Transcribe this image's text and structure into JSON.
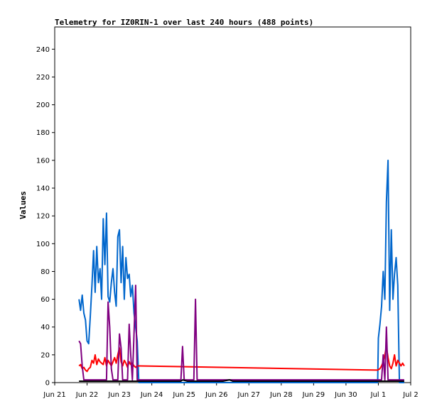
{
  "chart_data": {
    "type": "line",
    "title": "Telemetry for IZ0RIN-1 over last 240 hours (488 points)",
    "xlabel": "",
    "ylabel": "Values",
    "x_ticks": [
      "Jun 21",
      "Jun 22",
      "Jun 23",
      "Jun 24",
      "Jun 25",
      "Jun 26",
      "Jun 27",
      "Jun 28",
      "Jun 29",
      "Jun 30",
      "Jul 1",
      "Jul 2"
    ],
    "y_ticks": [
      0,
      20,
      40,
      60,
      80,
      100,
      120,
      140,
      160,
      180,
      200,
      220,
      240
    ],
    "xlim": [
      0,
      11
    ],
    "ylim": [
      0,
      256
    ],
    "grid": false,
    "legend": "none",
    "series": [
      {
        "color": "#0066cc",
        "x": [
          0.75,
          0.8,
          0.85,
          0.9,
          0.95,
          1.0,
          1.05,
          1.1,
          1.15,
          1.2,
          1.25,
          1.3,
          1.35,
          1.4,
          1.45,
          1.5,
          1.55,
          1.6,
          1.65,
          1.7,
          1.75,
          1.8,
          1.85,
          1.9,
          1.95,
          2.0,
          2.05,
          2.1,
          2.15,
          2.2,
          2.25,
          2.3,
          2.35,
          2.4,
          2.45,
          2.5,
          2.55,
          2.6,
          2.65,
          2.7,
          2.75,
          2.8,
          2.85,
          2.9,
          2.95,
          3.0,
          3.02,
          9.98,
          10.0,
          10.05,
          10.1,
          10.15,
          10.2,
          10.25,
          10.3,
          10.35,
          10.4,
          10.45,
          10.5,
          10.55,
          10.6,
          10.65,
          10.7,
          10.75,
          10.8
        ],
        "y": [
          60,
          52,
          63,
          50,
          45,
          30,
          28,
          48,
          70,
          95,
          65,
          98,
          72,
          82,
          60,
          118,
          85,
          122,
          62,
          58,
          72,
          82,
          65,
          55,
          105,
          110,
          72,
          98,
          60,
          90,
          75,
          78,
          62,
          70,
          50,
          40,
          30,
          0,
          0,
          0,
          0,
          0,
          0,
          0,
          0,
          0,
          0,
          0,
          32,
          42,
          55,
          80,
          60,
          130,
          160,
          52,
          110,
          60,
          78,
          90,
          70,
          0,
          0,
          0,
          0
        ]
      },
      {
        "color": "#ff0000",
        "x": [
          0.75,
          0.8,
          0.85,
          0.9,
          0.95,
          1.0,
          1.05,
          1.1,
          1.15,
          1.2,
          1.25,
          1.3,
          1.35,
          1.4,
          1.45,
          1.5,
          1.55,
          1.6,
          1.65,
          1.7,
          1.75,
          1.8,
          1.85,
          1.9,
          1.95,
          2.0,
          2.05,
          2.1,
          2.15,
          2.2,
          2.25,
          2.3,
          2.35,
          2.4,
          2.45,
          2.5,
          2.55,
          2.6,
          9.98,
          10.05,
          10.1,
          10.15,
          10.2,
          10.25,
          10.3,
          10.35,
          10.4,
          10.45,
          10.5,
          10.55,
          10.6,
          10.65,
          10.7,
          10.75,
          10.8
        ],
        "y": [
          12,
          13,
          10,
          11,
          9,
          8,
          10,
          11,
          16,
          14,
          20,
          13,
          17,
          15,
          14,
          13,
          18,
          12,
          16,
          14,
          12,
          15,
          18,
          14,
          20,
          25,
          15,
          12,
          16,
          14,
          11,
          15,
          13,
          14,
          12,
          11,
          12,
          12,
          9,
          10,
          12,
          15,
          20,
          26,
          18,
          12,
          10,
          14,
          20,
          12,
          16,
          14,
          12,
          14,
          12
        ]
      },
      {
        "color": "#800080",
        "x": [
          0.75,
          0.8,
          0.85,
          0.9,
          0.95,
          1.0,
          1.05,
          1.1,
          1.15,
          1.2,
          1.25,
          1.3,
          1.35,
          1.4,
          1.45,
          1.5,
          1.55,
          1.6,
          1.65,
          1.7,
          1.75,
          1.8,
          1.85,
          1.9,
          1.95,
          2.0,
          2.05,
          2.1,
          2.15,
          2.2,
          2.25,
          2.3,
          2.35,
          2.4,
          2.45,
          2.5,
          2.55,
          2.6,
          2.65,
          3.9,
          3.95,
          4.0,
          4.3,
          4.35,
          4.4,
          9.98,
          10.05,
          10.1,
          10.15,
          10.2,
          10.25,
          10.3,
          10.35,
          10.4,
          10.45,
          10.5,
          10.55,
          10.6,
          10.65,
          10.7,
          10.75,
          10.8
        ],
        "y": [
          30,
          28,
          12,
          2,
          2,
          2,
          2,
          2,
          2,
          2,
          2,
          2,
          2,
          2,
          2,
          2,
          2,
          2,
          58,
          40,
          10,
          2,
          2,
          2,
          2,
          35,
          25,
          2,
          2,
          2,
          2,
          42,
          20,
          2,
          35,
          70,
          2,
          2,
          2,
          2,
          26,
          2,
          2,
          60,
          2,
          2,
          2,
          2,
          20,
          2,
          40,
          2,
          2,
          2,
          2,
          2,
          2,
          2,
          2,
          2,
          2,
          2
        ]
      },
      {
        "color": "#000000",
        "x": [
          0.75,
          3.9,
          3.95,
          4.1,
          4.5,
          5.2,
          5.4,
          5.5,
          6.0,
          8.0,
          9.98,
          10.8
        ],
        "y": [
          1,
          1,
          2,
          1,
          1,
          1,
          2,
          1,
          1,
          1,
          1,
          1
        ]
      }
    ]
  }
}
